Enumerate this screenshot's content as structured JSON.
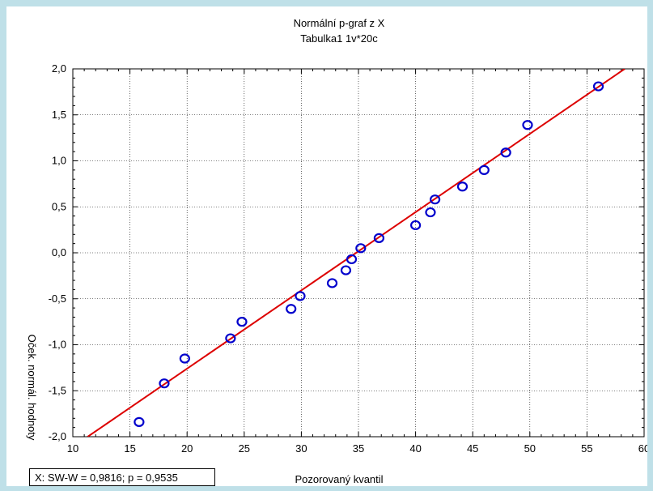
{
  "chart_data": {
    "type": "scatter",
    "title": "Normální p-graf z X",
    "subtitle": "Tabulka1 1v*20c",
    "xlabel": "Pozorovaný kvantil",
    "ylabel": "Oček. normál. hodnoty",
    "xlim": [
      10,
      60
    ],
    "ylim": [
      -2.0,
      2.0
    ],
    "x_ticks": [
      "10",
      "15",
      "20",
      "25",
      "30",
      "35",
      "40",
      "45",
      "50",
      "55",
      "60"
    ],
    "y_ticks": [
      "-2,0",
      "-1,5",
      "-1,0",
      "-0,5",
      "0,0",
      "0,5",
      "1,0",
      "1,5",
      "2,0"
    ],
    "grid": true,
    "series": [
      {
        "points": [
          [
            15.8,
            -1.84
          ],
          [
            18.0,
            -1.42
          ],
          [
            19.8,
            -1.15
          ],
          [
            23.8,
            -0.93
          ],
          [
            24.8,
            -0.75
          ],
          [
            29.1,
            -0.61
          ],
          [
            29.9,
            -0.47
          ],
          [
            32.7,
            -0.33
          ],
          [
            33.9,
            -0.19
          ],
          [
            34.4,
            -0.07
          ],
          [
            35.2,
            0.05
          ],
          [
            36.8,
            0.16
          ],
          [
            40.0,
            0.3
          ],
          [
            41.3,
            0.44
          ],
          [
            41.7,
            0.58
          ],
          [
            44.1,
            0.72
          ],
          [
            46.0,
            0.9
          ],
          [
            47.9,
            1.09
          ],
          [
            49.8,
            1.39
          ],
          [
            56.0,
            1.81
          ]
        ],
        "color": "#0000cc"
      }
    ],
    "fit_line": {
      "points": [
        [
          11.3,
          -2.0
        ],
        [
          58.3,
          2.0
        ]
      ],
      "color": "#dd0000"
    }
  },
  "stat_box": {
    "text": "X:  SW-W = 0,9816;  p = 0,9535"
  }
}
